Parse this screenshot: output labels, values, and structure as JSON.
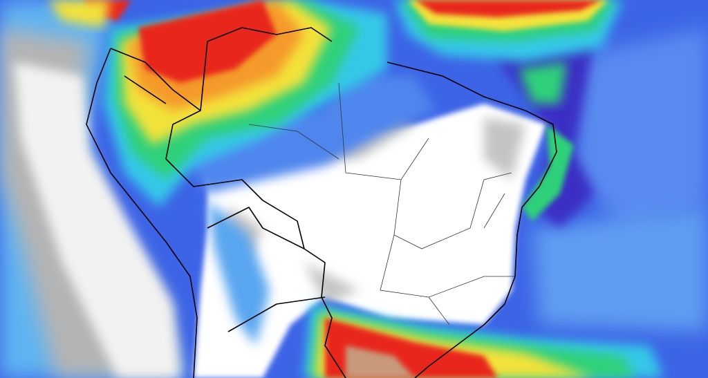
{
  "map": {
    "palette": {
      "ocean_blue": "#3d64e6",
      "deep_purple": "#3a2fc4",
      "light_blue": "#5fb4f2",
      "cyan": "#35c8e8",
      "green": "#2fd07a",
      "yellow": "#f3e23a",
      "orange": "#f59a2a",
      "red": "#e8261f",
      "brown": "#c89a7a",
      "gray": "#a9a9a9",
      "light_gray": "#d4d4d4",
      "white": "#ffffff",
      "border": "#000000"
    }
  }
}
